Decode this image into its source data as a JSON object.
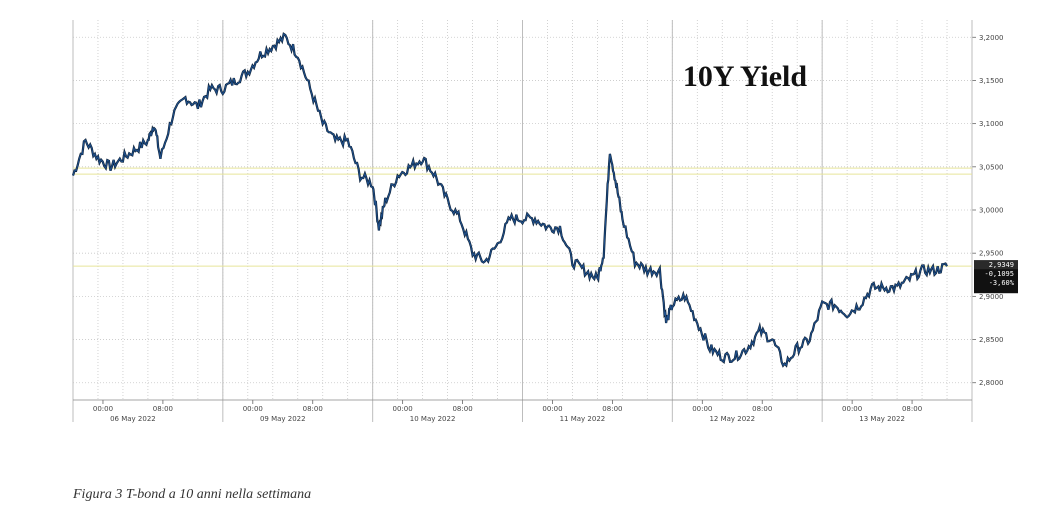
{
  "caption": "Figura 3 T-bond a 10 anni nella settimana",
  "chart_data": {
    "type": "line",
    "title": "10Y Yield",
    "xlabel": "",
    "ylabel": "",
    "ylim": [
      2.78,
      3.22
    ],
    "grid": true,
    "y_ticks": [
      "3,2000",
      "3,1500",
      "3,1000",
      "3,0500",
      "3,0000",
      "2,9500",
      "2,9000",
      "2,8500",
      "2,8000"
    ],
    "y_tick_values": [
      3.2,
      3.15,
      3.1,
      3.05,
      3.0,
      2.95,
      2.9,
      2.85,
      2.8
    ],
    "reference_line": 3.045,
    "days": [
      {
        "label": "06 May 2022",
        "times": [
          "00:00",
          "08:00"
        ]
      },
      {
        "label": "09 May 2022",
        "times": [
          "00:00",
          "08:00"
        ]
      },
      {
        "label": "10 May 2022",
        "times": [
          "00:00",
          "08:00"
        ]
      },
      {
        "label": "11 May 2022",
        "times": [
          "00:00",
          "08:00"
        ]
      },
      {
        "label": "12 May 2022",
        "times": [
          "00:00",
          "08:00"
        ]
      },
      {
        "label": "13 May 2022",
        "times": [
          "00:00",
          "08:00"
        ]
      }
    ],
    "last_value_badge": [
      "2,9349",
      "-0,1095",
      "-3,60%"
    ],
    "series": [
      {
        "color": "#1f4f8a",
        "values": [
          [
            0,
            3.04
          ],
          [
            4,
            3.08
          ],
          [
            8,
            3.06
          ],
          [
            12,
            3.05
          ],
          [
            16,
            3.06
          ],
          [
            20,
            3.07
          ],
          [
            24,
            3.08
          ],
          [
            26,
            3.1
          ],
          [
            28,
            3.06
          ],
          [
            32,
            3.11
          ],
          [
            36,
            3.13
          ],
          [
            40,
            3.12
          ],
          [
            44,
            3.14
          ],
          [
            48,
            3.14
          ],
          [
            52,
            3.15
          ],
          [
            56,
            3.16
          ],
          [
            60,
            3.18
          ],
          [
            64,
            3.19
          ],
          [
            68,
            3.2
          ],
          [
            72,
            3.18
          ],
          [
            76,
            3.14
          ],
          [
            80,
            3.1
          ],
          [
            84,
            3.08
          ],
          [
            88,
            3.08
          ],
          [
            92,
            3.04
          ],
          [
            96,
            3.03
          ],
          [
            98,
            2.98
          ],
          [
            100,
            3.01
          ],
          [
            104,
            3.04
          ],
          [
            108,
            3.05
          ],
          [
            112,
            3.06
          ],
          [
            116,
            3.04
          ],
          [
            120,
            3.01
          ],
          [
            124,
            2.99
          ],
          [
            128,
            2.95
          ],
          [
            132,
            2.94
          ],
          [
            136,
            2.96
          ],
          [
            140,
            2.99
          ],
          [
            144,
            2.99
          ],
          [
            148,
            2.99
          ],
          [
            152,
            2.98
          ],
          [
            156,
            2.98
          ],
          [
            160,
            2.94
          ],
          [
            164,
            2.93
          ],
          [
            168,
            2.92
          ],
          [
            170,
            2.95
          ],
          [
            172,
            3.07
          ],
          [
            174,
            3.03
          ],
          [
            176,
            2.99
          ],
          [
            180,
            2.94
          ],
          [
            184,
            2.93
          ],
          [
            188,
            2.93
          ],
          [
            190,
            2.87
          ],
          [
            192,
            2.89
          ],
          [
            196,
            2.9
          ],
          [
            200,
            2.87
          ],
          [
            204,
            2.84
          ],
          [
            208,
            2.83
          ],
          [
            212,
            2.83
          ],
          [
            216,
            2.84
          ],
          [
            220,
            2.86
          ],
          [
            224,
            2.85
          ],
          [
            228,
            2.82
          ],
          [
            232,
            2.84
          ],
          [
            236,
            2.85
          ],
          [
            240,
            2.89
          ],
          [
            244,
            2.89
          ],
          [
            248,
            2.88
          ],
          [
            252,
            2.89
          ],
          [
            256,
            2.91
          ],
          [
            260,
            2.91
          ],
          [
            264,
            2.91
          ],
          [
            268,
            2.92
          ],
          [
            272,
            2.93
          ],
          [
            276,
            2.93
          ],
          [
            280,
            2.9349
          ]
        ]
      }
    ]
  }
}
